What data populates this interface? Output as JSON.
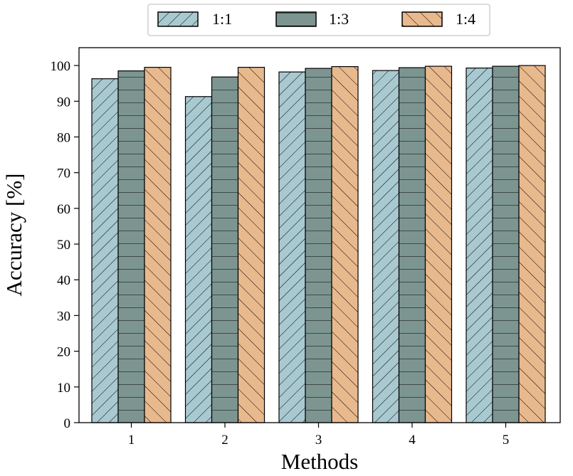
{
  "chart_data": {
    "type": "bar",
    "title": "",
    "xlabel": "Methods",
    "ylabel": "Accuracy [%]",
    "categories": [
      "1",
      "2",
      "3",
      "4",
      "5"
    ],
    "ylim": [
      0,
      105
    ],
    "yticks": [
      0,
      10,
      20,
      30,
      40,
      50,
      60,
      70,
      80,
      90,
      100
    ],
    "grid": false,
    "legend_position": "top-center",
    "series": [
      {
        "name": "1:1",
        "color": "#a9c9d1",
        "hatch": "forward-diagonal",
        "values": [
          96.3,
          91.3,
          98.2,
          98.6,
          99.3
        ]
      },
      {
        "name": "1:3",
        "color": "#7d9590",
        "hatch": "horizontal",
        "values": [
          98.5,
          96.8,
          99.2,
          99.4,
          99.8
        ]
      },
      {
        "name": "1:4",
        "color": "#e9b98e",
        "hatch": "back-diagonal",
        "values": [
          99.5,
          99.5,
          99.7,
          99.8,
          100.0
        ]
      }
    ]
  }
}
